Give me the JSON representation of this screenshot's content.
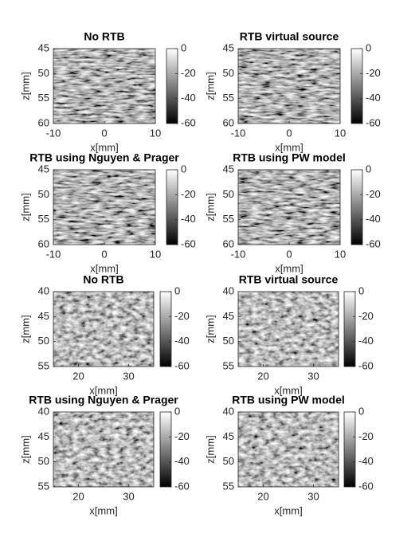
{
  "chart_data": [
    {
      "type": "image",
      "title": "No RTB",
      "xlabel": "x[mm]",
      "ylabel": "z[mm]",
      "xlim": [
        -10,
        10
      ],
      "xticks": [
        -10,
        0,
        10
      ],
      "ylim": [
        45,
        60
      ],
      "yticks": [
        45,
        50,
        55,
        60
      ],
      "y_reversed": true,
      "colormap": "gray",
      "clim": [
        -60,
        0
      ],
      "cticks": [
        0,
        -20,
        -40,
        -60
      ]
    },
    {
      "type": "image",
      "title": "RTB virtual source",
      "xlabel": "x[mm]",
      "ylabel": "z[mm]",
      "xlim": [
        -10,
        10
      ],
      "xticks": [
        -10,
        0,
        10
      ],
      "ylim": [
        45,
        60
      ],
      "yticks": [
        45,
        50,
        55,
        60
      ],
      "y_reversed": true,
      "colormap": "gray",
      "clim": [
        -60,
        0
      ],
      "cticks": [
        0,
        -20,
        -40,
        -60
      ]
    },
    {
      "type": "image",
      "title": "RTB using Nguyen & Prager",
      "xlabel": "x[mm]",
      "ylabel": "z[mm]",
      "xlim": [
        -10,
        10
      ],
      "xticks": [
        -10,
        0,
        10
      ],
      "ylim": [
        45,
        60
      ],
      "yticks": [
        45,
        50,
        55,
        60
      ],
      "y_reversed": true,
      "colormap": "gray",
      "clim": [
        -60,
        0
      ],
      "cticks": [
        0,
        -20,
        -40,
        -60
      ]
    },
    {
      "type": "image",
      "title": "RTB using PW model",
      "xlabel": "x[mm]",
      "ylabel": "z[mm]",
      "xlim": [
        -10,
        10
      ],
      "xticks": [
        -10,
        0,
        10
      ],
      "ylim": [
        45,
        60
      ],
      "yticks": [
        45,
        50,
        55,
        60
      ],
      "y_reversed": true,
      "colormap": "gray",
      "clim": [
        -60,
        0
      ],
      "cticks": [
        0,
        -20,
        -40,
        -60
      ]
    },
    {
      "type": "image",
      "title": "No RTB",
      "xlabel": "x[mm]",
      "ylabel": "z[mm]",
      "xlim": [
        15,
        35
      ],
      "xticks": [
        20,
        30
      ],
      "ylim": [
        40,
        55
      ],
      "yticks": [
        40,
        45,
        50,
        55
      ],
      "y_reversed": true,
      "colormap": "gray",
      "clim": [
        -60,
        0
      ],
      "cticks": [
        0,
        -20,
        -40,
        -60
      ]
    },
    {
      "type": "image",
      "title": "RTB virtual source",
      "xlabel": "x[mm]",
      "ylabel": "z[mm]",
      "xlim": [
        15,
        35
      ],
      "xticks": [
        20,
        30
      ],
      "ylim": [
        40,
        55
      ],
      "yticks": [
        40,
        45,
        50,
        55
      ],
      "y_reversed": true,
      "colormap": "gray",
      "clim": [
        -60,
        0
      ],
      "cticks": [
        0,
        -20,
        -40,
        -60
      ]
    },
    {
      "type": "image",
      "title": "RTB using Nguyen & Prager",
      "xlabel": "x[mm]",
      "ylabel": "z[mm]",
      "xlim": [
        15,
        35
      ],
      "xticks": [
        20,
        30
      ],
      "ylim": [
        40,
        55
      ],
      "yticks": [
        40,
        45,
        50,
        55
      ],
      "y_reversed": true,
      "colormap": "gray",
      "clim": [
        -60,
        0
      ],
      "cticks": [
        0,
        -20,
        -40,
        -60
      ]
    },
    {
      "type": "image",
      "title": "RTB using PW model",
      "xlabel": "x[mm]",
      "ylabel": "z[mm]",
      "xlim": [
        15,
        35
      ],
      "xticks": [
        20,
        30
      ],
      "ylim": [
        40,
        55
      ],
      "yticks": [
        40,
        45,
        50,
        55
      ],
      "y_reversed": true,
      "colormap": "gray",
      "clim": [
        -60,
        0
      ],
      "cticks": [
        0,
        -20,
        -40,
        -60
      ]
    }
  ]
}
